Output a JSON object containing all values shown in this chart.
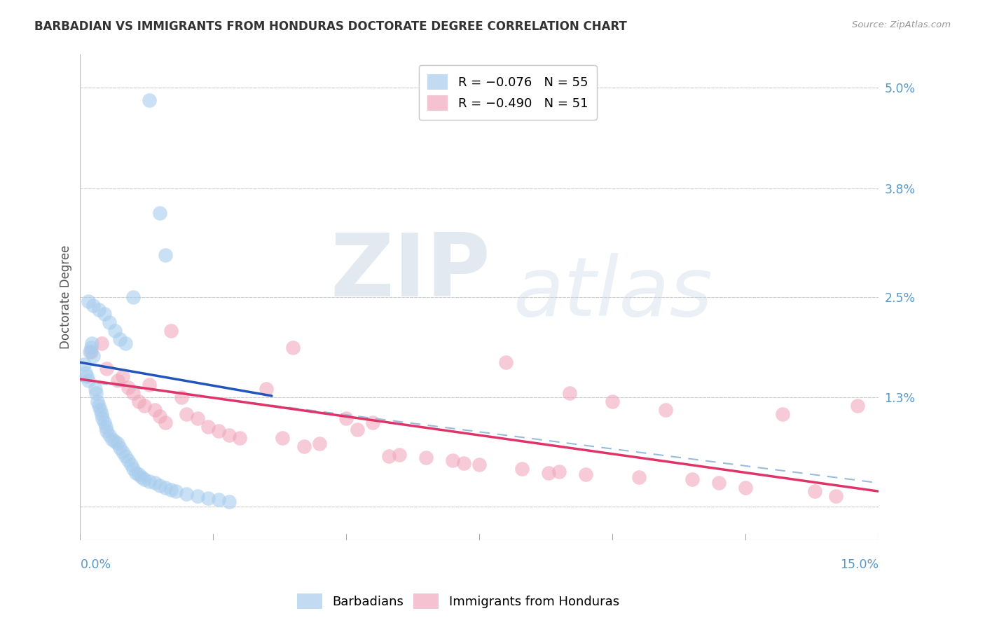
{
  "title": "BARBADIAN VS IMMIGRANTS FROM HONDURAS DOCTORATE DEGREE CORRELATION CHART",
  "source": "Source: ZipAtlas.com",
  "ylabel": "Doctorate Degree",
  "ytick_values": [
    0.0,
    1.3,
    2.5,
    3.8,
    5.0
  ],
  "ytick_labels": [
    "",
    "1.3%",
    "2.5%",
    "3.8%",
    "5.0%"
  ],
  "xmin": 0.0,
  "xmax": 15.0,
  "ymin": -0.4,
  "ymax": 5.4,
  "barbadian_color": "#A8CCEE",
  "honduras_color": "#F0A8BC",
  "trend_blue_color": "#2255BB",
  "trend_pink_color": "#E03368",
  "trend_dashed_color": "#99BBDD",
  "grid_color": "#CCCCCC",
  "label_color": "#5599CC",
  "title_color": "#333333",
  "source_color": "#999999",
  "blue_trend_x0": 0.0,
  "blue_trend_x1": 3.6,
  "blue_trend_y0": 1.72,
  "blue_trend_y1": 1.32,
  "pink_trend_x0": 0.0,
  "pink_trend_x1": 15.0,
  "pink_trend_y0": 1.52,
  "pink_trend_y1": 0.18,
  "dash_trend_x0": 0.0,
  "dash_trend_x1": 15.0,
  "dash_trend_y0": 1.5,
  "dash_trend_y1": 0.28,
  "barbadian_x": [
    0.08,
    0.1,
    0.12,
    0.15,
    0.18,
    0.2,
    0.22,
    0.25,
    0.28,
    0.3,
    0.32,
    0.35,
    0.38,
    0.4,
    0.42,
    0.45,
    0.48,
    0.5,
    0.55,
    0.6,
    0.65,
    0.7,
    0.75,
    0.8,
    0.85,
    0.9,
    0.95,
    1.0,
    1.05,
    1.1,
    1.15,
    1.2,
    1.3,
    1.4,
    1.5,
    1.6,
    1.7,
    1.8,
    2.0,
    2.2,
    2.4,
    2.6,
    2.8,
    0.15,
    0.25,
    0.35,
    0.45,
    0.55,
    0.65,
    0.75,
    0.85,
    1.0,
    1.3,
    1.5,
    1.6
  ],
  "barbadian_y": [
    1.7,
    1.6,
    1.55,
    1.5,
    1.85,
    1.9,
    1.95,
    1.8,
    1.4,
    1.35,
    1.25,
    1.2,
    1.15,
    1.1,
    1.05,
    1.0,
    0.95,
    0.9,
    0.85,
    0.8,
    0.78,
    0.75,
    0.7,
    0.65,
    0.6,
    0.55,
    0.5,
    0.45,
    0.4,
    0.38,
    0.35,
    0.32,
    0.3,
    0.28,
    0.25,
    0.22,
    0.2,
    0.18,
    0.15,
    0.12,
    0.1,
    0.08,
    0.06,
    2.45,
    2.4,
    2.35,
    2.3,
    2.2,
    2.1,
    2.0,
    1.95,
    2.5,
    4.85,
    3.5,
    3.0
  ],
  "honduras_x": [
    0.2,
    0.4,
    0.5,
    0.7,
    0.9,
    1.0,
    1.1,
    1.2,
    1.4,
    1.5,
    1.6,
    1.7,
    1.9,
    2.0,
    2.2,
    2.4,
    2.8,
    3.0,
    3.5,
    4.0,
    4.5,
    5.0,
    5.2,
    5.5,
    6.0,
    6.5,
    7.0,
    7.5,
    8.0,
    8.3,
    8.8,
    9.2,
    9.5,
    10.0,
    10.5,
    11.0,
    11.5,
    12.0,
    12.5,
    13.2,
    13.8,
    14.2,
    14.6,
    3.8,
    5.8,
    7.2,
    9.0,
    0.8,
    1.3,
    2.6,
    4.2
  ],
  "honduras_y": [
    1.85,
    1.95,
    1.65,
    1.5,
    1.42,
    1.35,
    1.25,
    1.2,
    1.15,
    1.08,
    1.0,
    2.1,
    1.3,
    1.1,
    1.05,
    0.95,
    0.85,
    0.82,
    1.4,
    1.9,
    0.75,
    1.05,
    0.92,
    1.0,
    0.62,
    0.58,
    0.55,
    0.5,
    1.72,
    0.45,
    0.4,
    1.35,
    0.38,
    1.25,
    0.35,
    1.15,
    0.32,
    0.28,
    0.22,
    1.1,
    0.18,
    0.12,
    1.2,
    0.82,
    0.6,
    0.52,
    0.42,
    1.55,
    1.45,
    0.9,
    0.72
  ]
}
